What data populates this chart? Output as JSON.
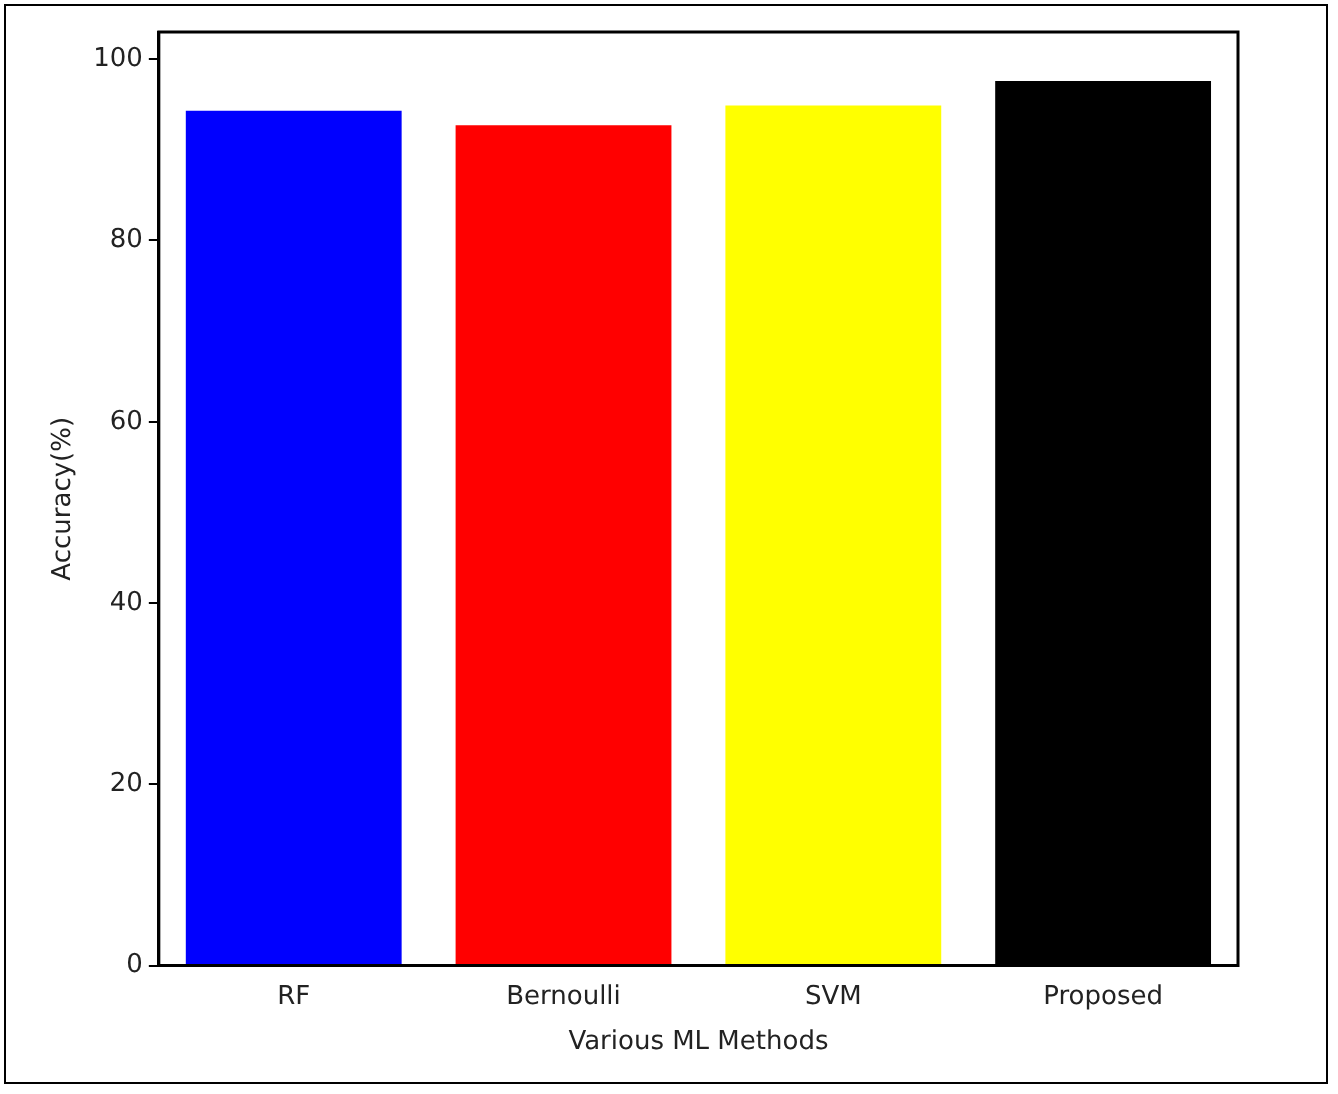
{
  "chart_data": {
    "type": "bar",
    "xlabel": "Various ML Methods",
    "ylabel": "Accuracy(%)",
    "categories": [
      "RF",
      "Bernoulli",
      "SVM",
      "Proposed"
    ],
    "values": [
      94.3,
      92.7,
      94.9,
      97.6
    ],
    "colors": [
      "#0000ff",
      "#ff0000",
      "#ffff00",
      "#000000"
    ],
    "ylim": [
      0,
      103
    ],
    "yticks": [
      0,
      20,
      40,
      60,
      80,
      100
    ],
    "grid": false,
    "legend": false
  }
}
